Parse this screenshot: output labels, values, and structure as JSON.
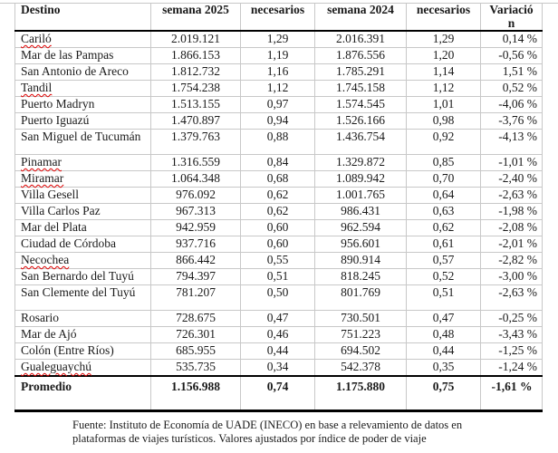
{
  "headers": [
    "Destino",
    "semana 2025",
    "necesarios",
    "semana 2024",
    "necesarios",
    "Variación"
  ],
  "rows": [
    [
      "Cariló",
      "2.019.121",
      "1,29",
      "2.016.391",
      "1,29",
      "0,14 %"
    ],
    [
      "Mar de las Pampas",
      "1.866.153",
      "1,19",
      "1.876.556",
      "1,20",
      "-0,56 %"
    ],
    [
      "San Antonio de Areco",
      "1.812.732",
      "1,16",
      "1.785.291",
      "1,14",
      "1,51 %"
    ],
    [
      "Tandil",
      "1.754.238",
      "1,12",
      "1.745.158",
      "1,12",
      "0,52 %"
    ],
    [
      "Puerto Madryn",
      "1.513.155",
      "0,97",
      "1.574.545",
      "1,01",
      "-4,06 %"
    ],
    [
      "Puerto Iguazú",
      "1.470.897",
      "0,94",
      "1.526.166",
      "0,98",
      "-3,76 %"
    ],
    [
      "San Miguel de Tucumán",
      "1.379.763",
      "0,88",
      "1.436.754",
      "0,92",
      "-4,13 %"
    ],
    [
      "Pinamar",
      "1.316.559",
      "0,84",
      "1.329.872",
      "0,85",
      "-1,01 %"
    ],
    [
      "Miramar",
      "1.064.348",
      "0,68",
      "1.089.942",
      "0,70",
      "-2,40 %"
    ],
    [
      "Villa Gesell",
      "976.092",
      "0,62",
      "1.001.765",
      "0,64",
      "-2,63 %"
    ],
    [
      "Villa Carlos Paz",
      "967.313",
      "0,62",
      "986.431",
      "0,63",
      "-1,98 %"
    ],
    [
      "Mar del Plata",
      "942.959",
      "0,60",
      "962.594",
      "0,62",
      "-2,08 %"
    ],
    [
      "Ciudad de Córdoba",
      "937.716",
      "0,60",
      "956.601",
      "0,61",
      "-2,01 %"
    ],
    [
      "Necochea",
      "866.442",
      "0,55",
      "890.914",
      "0,57",
      "-2,82 %"
    ],
    [
      "San Bernardo del Tuyú",
      "794.397",
      "0,51",
      "818.245",
      "0,52",
      "-3,00 %"
    ],
    [
      "San Clemente del Tuyú",
      "781.207",
      "0,50",
      "801.769",
      "0,51",
      "-2,63 %"
    ],
    [
      "Rosario",
      "728.675",
      "0,47",
      "730.501",
      "0,47",
      "-0,25 %"
    ],
    [
      "Mar de Ajó",
      "726.301",
      "0,46",
      "751.223",
      "0,48",
      "-3,43 %"
    ],
    [
      "Colón (Entre Ríos)",
      "685.955",
      "0,44",
      "694.502",
      "0,44",
      "-1,25 %"
    ],
    [
      "Gualeguaychú",
      "535.735",
      "0,34",
      "542.378",
      "0,35",
      "-1,24 %"
    ]
  ],
  "average": [
    "Promedio",
    "1.156.988",
    "0,74",
    "1.175.880",
    "0,75",
    "-1,61 %"
  ],
  "footer": "Fuente: Instituto de Economía de UADE (INECO) en base a relevamiento de datos en plataformas de viajes turísticos. Valores ajustados por índice de poder de viaje"
}
